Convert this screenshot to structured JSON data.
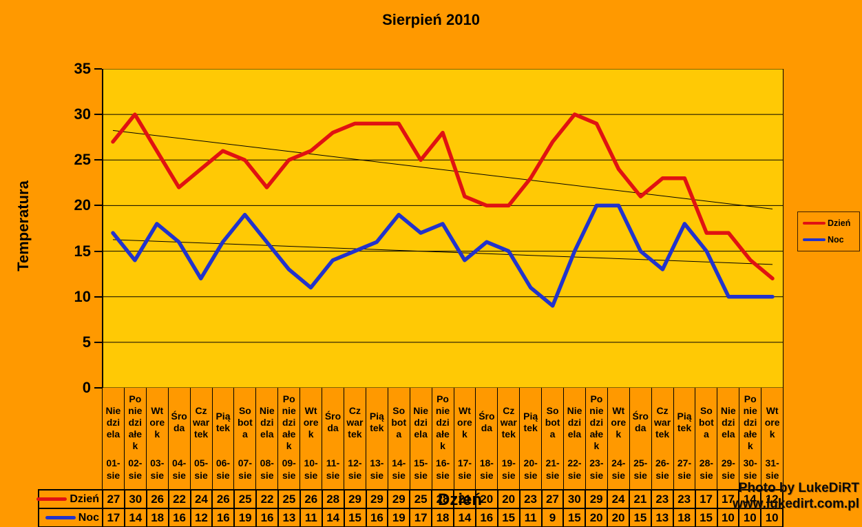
{
  "title": "Sierpień 2010",
  "y_axis": {
    "label": "Temperatura",
    "ticks": [
      "35",
      "30",
      "25",
      "20",
      "15",
      "10",
      "5",
      "0"
    ]
  },
  "x_axis": {
    "label": "Dzień"
  },
  "legend": {
    "items": [
      {
        "label": "Dzień",
        "color": "#E01212"
      },
      {
        "label": "Noc",
        "color": "#2233CC"
      }
    ]
  },
  "watermark": {
    "line1": "Photo by LukeDiRT",
    "line2": "www.lukedirt.com.pl"
  },
  "colors": {
    "outer_bg": "#FF9900",
    "plot_bg": "#FFC905",
    "grid": "#000000",
    "trend": "#000000"
  },
  "chart_data": {
    "type": "line",
    "title": "Sierpień 2010",
    "xlabel": "Dzień",
    "ylabel": "Temperatura",
    "ylim": [
      0,
      35
    ],
    "y_ticks": [
      0,
      5,
      10,
      15,
      20,
      25,
      30,
      35
    ],
    "grid": true,
    "legend_position": "right",
    "plot_bg": "#FFC905",
    "outer_bg": "#FF9900",
    "categories": [
      "01-sie",
      "02-sie",
      "03-sie",
      "04-sie",
      "05-sie",
      "06-sie",
      "07-sie",
      "08-sie",
      "09-sie",
      "10-sie",
      "11-sie",
      "12-sie",
      "13-sie",
      "14-sie",
      "15-sie",
      "16-sie",
      "17-sie",
      "18-sie",
      "19-sie",
      "20-sie",
      "21-sie",
      "22-sie",
      "23-sie",
      "24-sie",
      "25-sie",
      "26-sie",
      "27-sie",
      "28-sie",
      "29-sie",
      "30-sie",
      "31-sie"
    ],
    "weekdays": [
      "Niedziela",
      "Poniedziałek",
      "Wtorek",
      "Środa",
      "Czwartek",
      "Piątek",
      "Sobota",
      "Niedziela",
      "Poniedziałek",
      "Wtorek",
      "Środa",
      "Czwartek",
      "Piątek",
      "Sobota",
      "Niedziela",
      "Poniedziałek",
      "Wtorek",
      "Środa",
      "Czwartek",
      "Piątek",
      "Sobota",
      "Niedziela",
      "Poniedziałek",
      "Wtorek",
      "Środa",
      "Czwartek",
      "Piątek",
      "Sobota",
      "Niedziela",
      "Poniedziałek",
      "Wtorek"
    ],
    "weekday_wrap_map": {
      "Niedziela": "Nie\ndzi\nela",
      "Poniedziałek": "Po\nnie\ndzi\nałe\nk",
      "Wtorek": "Wt\nore\nk",
      "Środa": "Śro\nda",
      "Czwartek": "Cz\nwar\ntek",
      "Piątek": "Pią\ntek",
      "Sobota": "So\nbot\na"
    },
    "series": [
      {
        "name": "Dzień",
        "color": "#E01212",
        "values": [
          27,
          30,
          26,
          22,
          24,
          26,
          25,
          22,
          25,
          26,
          28,
          29,
          29,
          29,
          25,
          28,
          21,
          20,
          20,
          23,
          27,
          30,
          29,
          24,
          21,
          23,
          23,
          17,
          17,
          14,
          12
        ],
        "trendline": true
      },
      {
        "name": "Noc",
        "color": "#2233CC",
        "values": [
          17,
          14,
          18,
          16,
          12,
          16,
          19,
          16,
          13,
          11,
          14,
          15,
          16,
          19,
          17,
          18,
          14,
          16,
          15,
          11,
          9,
          15,
          20,
          20,
          15,
          13,
          18,
          15,
          10,
          10,
          10
        ],
        "trendline": true
      }
    ],
    "trendline_style": {
      "color": "#000000",
      "width": 1
    }
  }
}
